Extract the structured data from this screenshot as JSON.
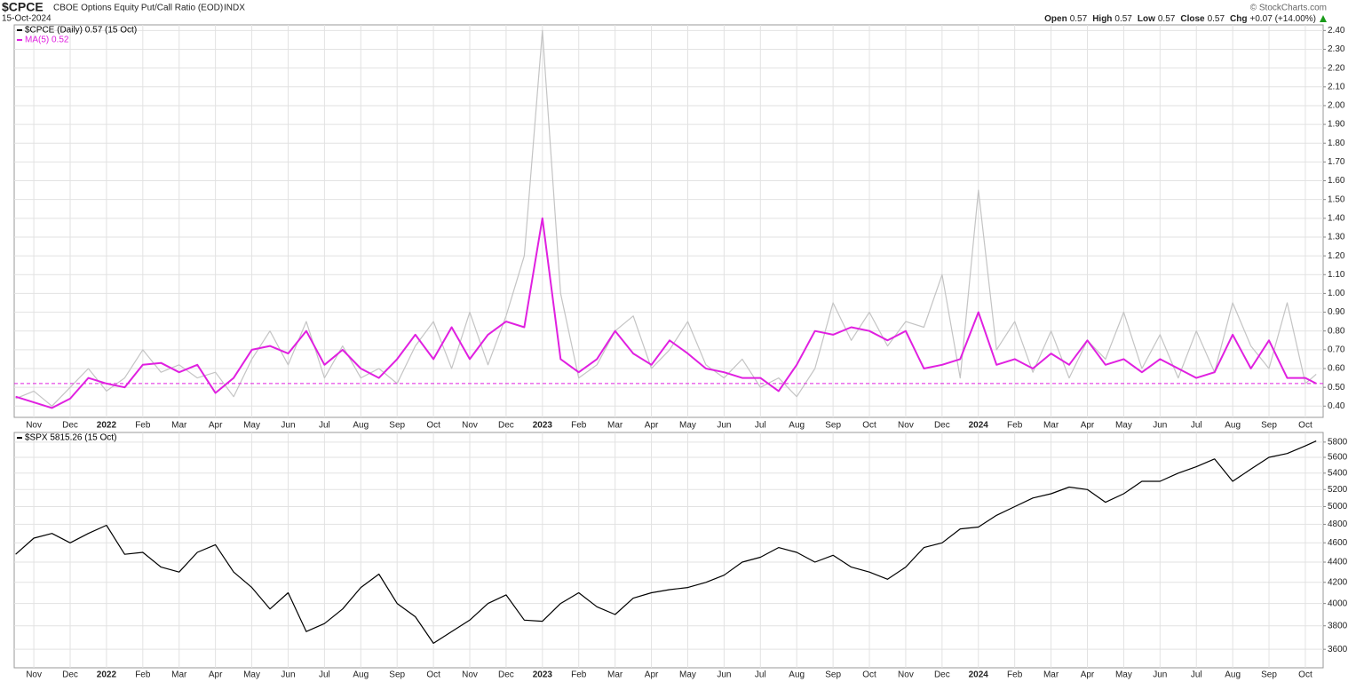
{
  "header": {
    "symbol": "$CPCE",
    "name": "CBOE Options Equity Put/Call Ratio (EOD)",
    "exchange": "INDX",
    "date": "15-Oct-2024",
    "quote": [
      {
        "label": "Open",
        "value": "0.57"
      },
      {
        "label": "High",
        "value": "0.57"
      },
      {
        "label": "Low",
        "value": "0.57"
      },
      {
        "label": "Close",
        "value": "0.57"
      },
      {
        "label": "Chg",
        "value": "+0.07 (+14.00%)"
      }
    ],
    "credit": "© StockCharts.com"
  },
  "chart_data": [
    {
      "type": "line",
      "grid": true,
      "log": false,
      "x": [
        -0.5,
        0,
        0.5,
        1,
        1.5,
        2,
        2.5,
        3,
        3.5,
        4,
        4.5,
        5,
        5.5,
        6,
        6.5,
        7,
        7.5,
        8,
        8.5,
        9,
        9.5,
        10,
        10.5,
        11,
        11.5,
        12,
        12.5,
        13,
        13.5,
        14,
        14.5,
        15,
        15.5,
        16,
        16.5,
        17,
        17.5,
        18,
        18.5,
        19,
        19.5,
        20,
        20.5,
        21,
        21.5,
        22,
        22.5,
        23,
        23.5,
        24,
        24.5,
        25,
        25.5,
        26,
        26.5,
        27,
        27.5,
        28,
        28.5,
        29,
        29.5,
        30,
        30.5,
        31,
        31.5,
        32,
        32.5,
        33,
        33.5,
        34,
        34.5,
        35,
        35.3
      ],
      "xlim": [
        -0.54,
        35.49
      ],
      "xticks": [
        {
          "value": 0,
          "label": "Nov"
        },
        {
          "value": 1,
          "label": "Dec"
        },
        {
          "value": 2,
          "label": "2022"
        },
        {
          "value": 3,
          "label": "Feb"
        },
        {
          "value": 4,
          "label": "Mar"
        },
        {
          "value": 5,
          "label": "Apr"
        },
        {
          "value": 6,
          "label": "May"
        },
        {
          "value": 7,
          "label": "Jun"
        },
        {
          "value": 8,
          "label": "Jul"
        },
        {
          "value": 9,
          "label": "Aug"
        },
        {
          "value": 10,
          "label": "Sep"
        },
        {
          "value": 11,
          "label": "Oct"
        },
        {
          "value": 12,
          "label": "Nov"
        },
        {
          "value": 13,
          "label": "Dec"
        },
        {
          "value": 14,
          "label": "2023"
        },
        {
          "value": 15,
          "label": "Feb"
        },
        {
          "value": 16,
          "label": "Mar"
        },
        {
          "value": 17,
          "label": "Apr"
        },
        {
          "value": 18,
          "label": "May"
        },
        {
          "value": 19,
          "label": "Jun"
        },
        {
          "value": 20,
          "label": "Jul"
        },
        {
          "value": 21,
          "label": "Aug"
        },
        {
          "value": 22,
          "label": "Sep"
        },
        {
          "value": 23,
          "label": "Oct"
        },
        {
          "value": 24,
          "label": "Nov"
        },
        {
          "value": 25,
          "label": "Dec"
        },
        {
          "value": 26,
          "label": "2024"
        },
        {
          "value": 27,
          "label": "Feb"
        },
        {
          "value": 28,
          "label": "Mar"
        },
        {
          "value": 29,
          "label": "Apr"
        },
        {
          "value": 30,
          "label": "May"
        },
        {
          "value": 31,
          "label": "Jun"
        },
        {
          "value": 32,
          "label": "Jul"
        },
        {
          "value": 33,
          "label": "Aug"
        },
        {
          "value": 34,
          "label": "Sep"
        },
        {
          "value": 35,
          "label": "Oct"
        }
      ],
      "ylim": [
        0.34,
        2.43
      ],
      "yticks": [
        {
          "value": 0.4,
          "label": "0.40"
        },
        {
          "value": 0.5,
          "label": "0.50"
        },
        {
          "value": 0.6,
          "label": "0.60"
        },
        {
          "value": 0.7,
          "label": "0.70"
        },
        {
          "value": 0.8,
          "label": "0.80"
        },
        {
          "value": 0.9,
          "label": "0.90"
        },
        {
          "value": 1.0,
          "label": "1.00"
        },
        {
          "value": 1.1,
          "label": "1.10"
        },
        {
          "value": 1.2,
          "label": "1.20"
        },
        {
          "value": 1.3,
          "label": "1.30"
        },
        {
          "value": 1.4,
          "label": "1.40"
        },
        {
          "value": 1.5,
          "label": "1.50"
        },
        {
          "value": 1.6,
          "label": "1.60"
        },
        {
          "value": 1.7,
          "label": "1.70"
        },
        {
          "value": 1.8,
          "label": "1.80"
        },
        {
          "value": 1.9,
          "label": "1.90"
        },
        {
          "value": 2.0,
          "label": "2.00"
        },
        {
          "value": 2.1,
          "label": "2.10"
        },
        {
          "value": 2.2,
          "label": "2.20"
        },
        {
          "value": 2.3,
          "label": "2.30"
        },
        {
          "value": 2.4,
          "label": "2.40"
        }
      ],
      "series": [
        {
          "name": "$CPCE (Daily) 0.57 (15 Oct)",
          "color": "#c4c4c4",
          "legend_color": "#000000",
          "width": 1.2,
          "values": [
            0.44,
            0.48,
            0.4,
            0.5,
            0.6,
            0.48,
            0.55,
            0.7,
            0.58,
            0.62,
            0.55,
            0.58,
            0.45,
            0.65,
            0.8,
            0.62,
            0.85,
            0.55,
            0.72,
            0.55,
            0.6,
            0.52,
            0.72,
            0.85,
            0.6,
            0.9,
            0.62,
            0.88,
            1.2,
            2.4,
            1.0,
            0.55,
            0.62,
            0.8,
            0.88,
            0.6,
            0.7,
            0.85,
            0.62,
            0.55,
            0.65,
            0.5,
            0.55,
            0.45,
            0.6,
            0.95,
            0.75,
            0.9,
            0.72,
            0.85,
            0.82,
            1.1,
            0.55,
            1.55,
            0.7,
            0.85,
            0.58,
            0.8,
            0.55,
            0.75,
            0.65,
            0.9,
            0.6,
            0.78,
            0.55,
            0.8,
            0.58,
            0.95,
            0.72,
            0.6,
            0.95,
            0.52,
            0.57
          ]
        },
        {
          "name": "MA(5) 0.52",
          "color": "#e020e0",
          "legend_color": "#e020e0",
          "width": 2,
          "last_line": true,
          "values": [
            0.45,
            0.42,
            0.39,
            0.44,
            0.55,
            0.52,
            0.5,
            0.62,
            0.63,
            0.58,
            0.62,
            0.47,
            0.55,
            0.7,
            0.72,
            0.68,
            0.8,
            0.62,
            0.7,
            0.6,
            0.55,
            0.65,
            0.78,
            0.65,
            0.82,
            0.65,
            0.78,
            0.85,
            0.82,
            1.4,
            0.65,
            0.58,
            0.65,
            0.8,
            0.68,
            0.62,
            0.75,
            0.68,
            0.6,
            0.58,
            0.55,
            0.55,
            0.48,
            0.62,
            0.8,
            0.78,
            0.82,
            0.8,
            0.75,
            0.8,
            0.6,
            0.62,
            0.65,
            0.9,
            0.62,
            0.65,
            0.6,
            0.68,
            0.62,
            0.75,
            0.62,
            0.65,
            0.58,
            0.65,
            0.6,
            0.55,
            0.58,
            0.78,
            0.6,
            0.75,
            0.55,
            0.55,
            0.52
          ]
        }
      ]
    },
    {
      "type": "line",
      "grid": true,
      "log": true,
      "x": [
        -0.5,
        0,
        0.5,
        1,
        1.5,
        2,
        2.5,
        3,
        3.5,
        4,
        4.5,
        5,
        5.5,
        6,
        6.5,
        7,
        7.5,
        8,
        8.5,
        9,
        9.5,
        10,
        10.5,
        11,
        11.5,
        12,
        12.5,
        13,
        13.5,
        14,
        14.5,
        15,
        15.5,
        16,
        16.5,
        17,
        17.5,
        18,
        18.5,
        19,
        19.5,
        20,
        20.5,
        21,
        21.5,
        22,
        22.5,
        23,
        23.5,
        24,
        24.5,
        25,
        25.5,
        26,
        26.5,
        27,
        27.5,
        28,
        28.5,
        29,
        29.5,
        30,
        30.5,
        31,
        31.5,
        32,
        32.5,
        33,
        33.5,
        34,
        34.5,
        35,
        35.3
      ],
      "xlim": [
        -0.54,
        35.49
      ],
      "xticks": [
        {
          "value": 0,
          "label": "Nov"
        },
        {
          "value": 1,
          "label": "Dec"
        },
        {
          "value": 2,
          "label": "2022"
        },
        {
          "value": 3,
          "label": "Feb"
        },
        {
          "value": 4,
          "label": "Mar"
        },
        {
          "value": 5,
          "label": "Apr"
        },
        {
          "value": 6,
          "label": "May"
        },
        {
          "value": 7,
          "label": "Jun"
        },
        {
          "value": 8,
          "label": "Jul"
        },
        {
          "value": 9,
          "label": "Aug"
        },
        {
          "value": 10,
          "label": "Sep"
        },
        {
          "value": 11,
          "label": "Oct"
        },
        {
          "value": 12,
          "label": "Nov"
        },
        {
          "value": 13,
          "label": "Dec"
        },
        {
          "value": 14,
          "label": "2023"
        },
        {
          "value": 15,
          "label": "Feb"
        },
        {
          "value": 16,
          "label": "Mar"
        },
        {
          "value": 17,
          "label": "Apr"
        },
        {
          "value": 18,
          "label": "May"
        },
        {
          "value": 19,
          "label": "Jun"
        },
        {
          "value": 20,
          "label": "Jul"
        },
        {
          "value": 21,
          "label": "Aug"
        },
        {
          "value": 22,
          "label": "Sep"
        },
        {
          "value": 23,
          "label": "Oct"
        },
        {
          "value": 24,
          "label": "Nov"
        },
        {
          "value": 25,
          "label": "Dec"
        },
        {
          "value": 26,
          "label": "2024"
        },
        {
          "value": 27,
          "label": "Feb"
        },
        {
          "value": 28,
          "label": "Mar"
        },
        {
          "value": 29,
          "label": "Apr"
        },
        {
          "value": 30,
          "label": "May"
        },
        {
          "value": 31,
          "label": "Jun"
        },
        {
          "value": 32,
          "label": "Jul"
        },
        {
          "value": 33,
          "label": "Aug"
        },
        {
          "value": 34,
          "label": "Sep"
        },
        {
          "value": 35,
          "label": "Oct"
        }
      ],
      "ylim": [
        3450,
        5930
      ],
      "yticks": [
        3600,
        3800,
        4000,
        4200,
        4400,
        4600,
        4800,
        5000,
        5200,
        5400,
        5600,
        5800
      ],
      "series": [
        {
          "name": "$SPX 5815.26 (15 Oct)",
          "color": "#000000",
          "legend_color": "#000000",
          "width": 1.2,
          "values": [
            4480,
            4650,
            4700,
            4600,
            4700,
            4790,
            4480,
            4500,
            4350,
            4300,
            4500,
            4580,
            4300,
            4150,
            3950,
            4100,
            3750,
            3820,
            3950,
            4150,
            4280,
            4000,
            3880,
            3650,
            3750,
            3850,
            4000,
            4080,
            3850,
            3840,
            4000,
            4100,
            3970,
            3900,
            4050,
            4100,
            4130,
            4150,
            4200,
            4270,
            4400,
            4450,
            4550,
            4500,
            4400,
            4470,
            4350,
            4300,
            4230,
            4350,
            4550,
            4600,
            4750,
            4770,
            4900,
            5000,
            5100,
            5150,
            5230,
            5200,
            5050,
            5150,
            5300,
            5300,
            5400,
            5480,
            5580,
            5300,
            5450,
            5600,
            5650,
            5750,
            5815.26
          ]
        }
      ]
    }
  ]
}
